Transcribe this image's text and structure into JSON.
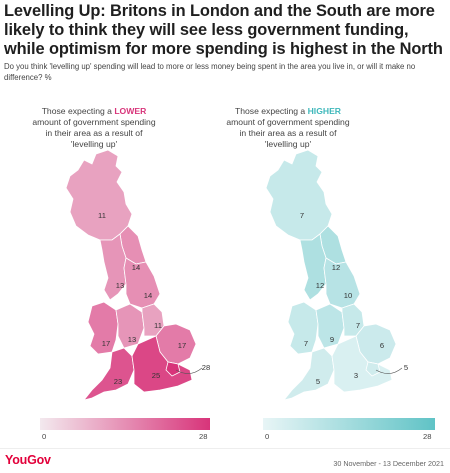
{
  "title": "Levelling Up: Britons in London and the South are more likely to think they will see less government funding, while optimism for more spending is highest in the North",
  "subtitle": "Do you think 'levelling up' spending will lead to more or less money being spent in the area you live in, or will it make no difference? %",
  "colors": {
    "lower_scale_start": "#f3e9ee",
    "lower_scale_end": "#d8347a",
    "higher_scale_start": "#e8f5f6",
    "higher_scale_end": "#60c3c6"
  },
  "panels": {
    "lower": {
      "label_pre": "Those expecting a ",
      "label_highlight": "LOWER",
      "label_post": " amount of government spending in their area as a result of 'levelling up'",
      "highlight_color": "#d8347a",
      "scale_min": "0",
      "scale_max": "28",
      "regions": [
        {
          "region": "Scotland",
          "value": 11
        },
        {
          "region": "North East",
          "value": 14
        },
        {
          "region": "North West",
          "value": 13
        },
        {
          "region": "Yorkshire and the Humber",
          "value": 14
        },
        {
          "region": "Wales",
          "value": 17
        },
        {
          "region": "West Midlands",
          "value": 13
        },
        {
          "region": "East Midlands",
          "value": 11
        },
        {
          "region": "East of England",
          "value": 17
        },
        {
          "region": "South West",
          "value": 23
        },
        {
          "region": "South East",
          "value": 25
        },
        {
          "region": "London",
          "value": 28
        }
      ]
    },
    "higher": {
      "label_pre": "Those expecting a ",
      "label_highlight": "HIGHER",
      "label_post": " amount of government spending in their area as a result of 'levelling up'",
      "highlight_color": "#3fb8bb",
      "scale_min": "0",
      "scale_max": "28",
      "regions": [
        {
          "region": "Scotland",
          "value": 7
        },
        {
          "region": "North East",
          "value": 12
        },
        {
          "region": "North West",
          "value": 12
        },
        {
          "region": "Yorkshire and the Humber",
          "value": 10
        },
        {
          "region": "Wales",
          "value": 7
        },
        {
          "region": "West Midlands",
          "value": 9
        },
        {
          "region": "East Midlands",
          "value": 7
        },
        {
          "region": "East of England",
          "value": 6
        },
        {
          "region": "South West",
          "value": 5
        },
        {
          "region": "South East",
          "value": 3
        },
        {
          "region": "London",
          "value": 5
        }
      ]
    }
  },
  "logo": "YouGov",
  "dates": "30 November - 13 December 2021"
}
